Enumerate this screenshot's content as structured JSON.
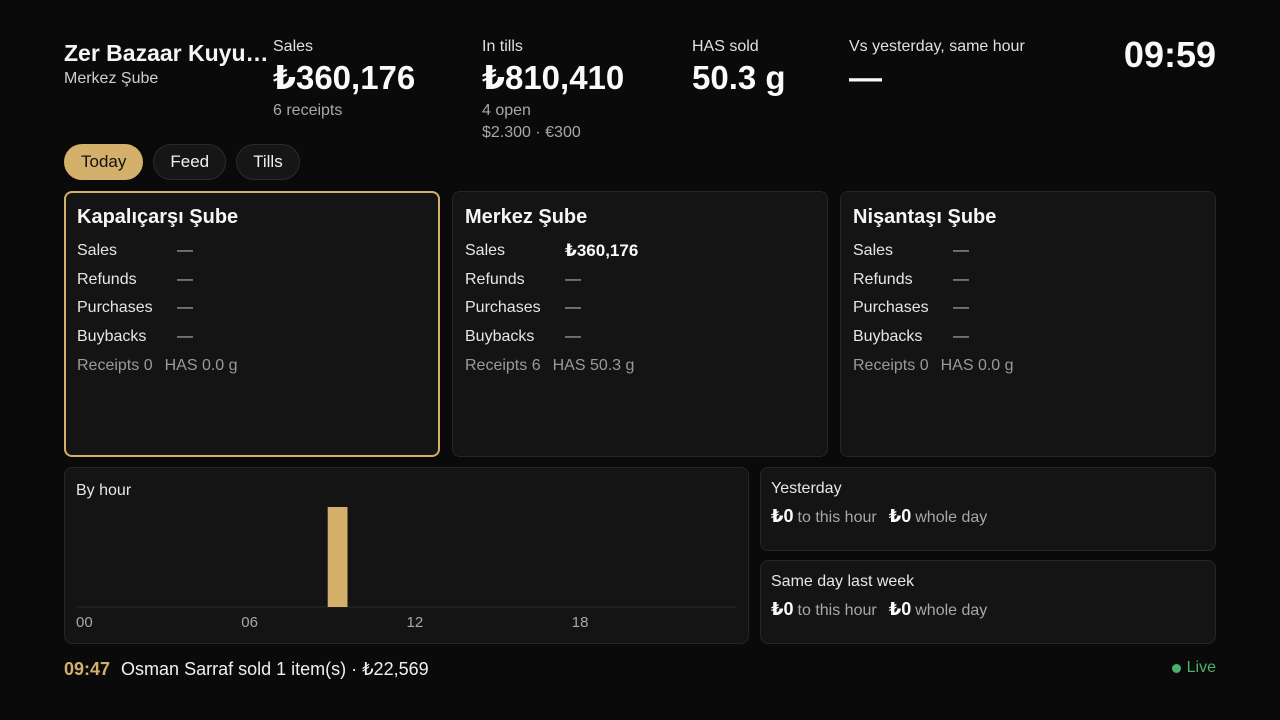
{
  "header": {
    "brand_title": "Zer Bazaar Kuyumculuk",
    "brand_subtitle": "Merkez Şube",
    "clock": "09:59",
    "metrics": [
      {
        "label": "Sales",
        "value": "₺360,176",
        "sub": "6 receipts",
        "sub2": ""
      },
      {
        "label": "In tills",
        "value": "₺810,410",
        "sub": "4 open",
        "sub2": "$2.300 · €300"
      },
      {
        "label": "HAS sold",
        "value": "50.3 g",
        "sub": "",
        "sub2": ""
      },
      {
        "label": "Vs yesterday, same hour",
        "value": "—",
        "sub": "",
        "sub2": ""
      }
    ]
  },
  "tabs": [
    {
      "label": "Today",
      "active": true
    },
    {
      "label": "Feed",
      "active": false
    },
    {
      "label": "Tills",
      "active": false
    }
  ],
  "branches": [
    {
      "name": "Kapalıçarşı Şube",
      "rows": [
        {
          "label": "Sales",
          "value": "—"
        },
        {
          "label": "Refunds",
          "value": "—"
        },
        {
          "label": "Purchases",
          "value": "—"
        },
        {
          "label": "Buybacks",
          "value": "—"
        }
      ],
      "receipts": "Receipts 0",
      "has": "HAS 0.0 g"
    },
    {
      "name": "Merkez Şube",
      "rows": [
        {
          "label": "Sales",
          "value": "₺360,176"
        },
        {
          "label": "Refunds",
          "value": "—"
        },
        {
          "label": "Purchases",
          "value": "—"
        },
        {
          "label": "Buybacks",
          "value": "—"
        }
      ],
      "receipts": "Receipts 6",
      "has": "HAS 50.3 g"
    },
    {
      "name": "Nişantaşı Şube",
      "rows": [
        {
          "label": "Sales",
          "value": "—"
        },
        {
          "label": "Refunds",
          "value": "—"
        },
        {
          "label": "Purchases",
          "value": "—"
        },
        {
          "label": "Buybacks",
          "value": "—"
        }
      ],
      "receipts": "Receipts 0",
      "has": "HAS 0.0 g"
    }
  ],
  "hourly": {
    "title": "By hour",
    "tick_labels": [
      "00",
      "06",
      "12",
      "18"
    ],
    "tick_hours": [
      0,
      6,
      12,
      18
    ],
    "hours": [
      0,
      1,
      2,
      3,
      4,
      5,
      6,
      7,
      8,
      9,
      10,
      11,
      12,
      13,
      14,
      15,
      16,
      17,
      18,
      19,
      20,
      21,
      22,
      23
    ],
    "values": [
      0,
      0,
      0,
      0,
      0,
      0,
      0,
      0,
      0,
      360176,
      0,
      0,
      0,
      0,
      0,
      0,
      0,
      0,
      0,
      0,
      0,
      0,
      0,
      0
    ],
    "bar_color": "#d4b06a"
  },
  "comparisons": [
    {
      "title": "Yesterday",
      "to_hour_value": "₺0",
      "to_hour_label": "to this hour",
      "day_value": "₺0",
      "day_label": "whole day"
    },
    {
      "title": "Same day last week",
      "to_hour_value": "₺0",
      "to_hour_label": "to this hour",
      "day_value": "₺0",
      "day_label": "whole day"
    }
  ],
  "feed": {
    "time": "09:47",
    "text": "Osman Sarraf sold 1 item(s) · ₺22,569",
    "live_label": "Live"
  },
  "colors": {
    "accent": "#d4b06a",
    "live": "#4caf6a",
    "background": "#0a0a0a"
  }
}
